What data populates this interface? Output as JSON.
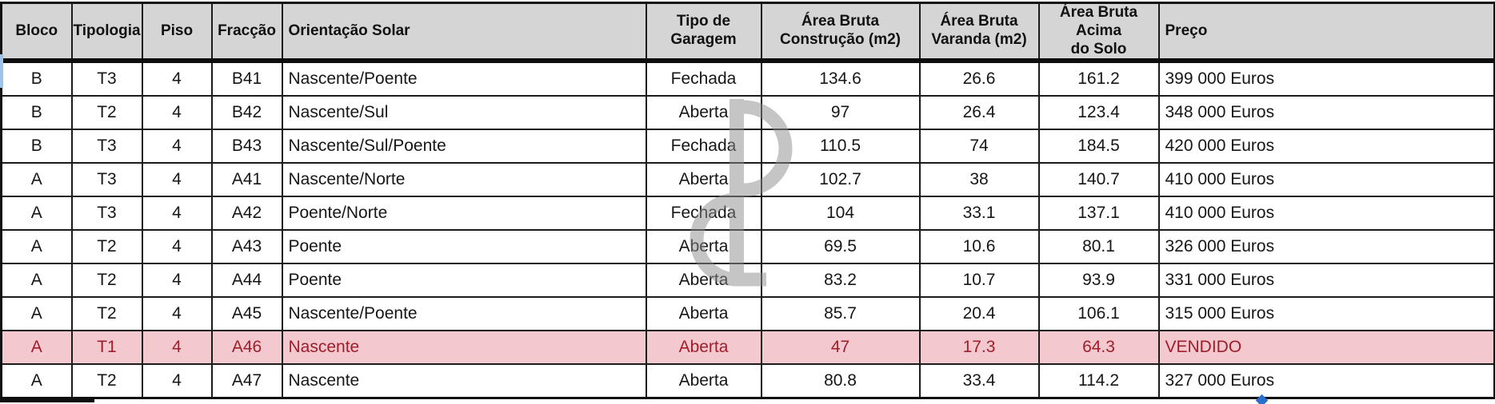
{
  "table": {
    "columns": [
      {
        "key": "bloco",
        "label": "Bloco",
        "align": "center"
      },
      {
        "key": "tipologia",
        "label": "Tipologia",
        "align": "center"
      },
      {
        "key": "piso",
        "label": "Piso",
        "align": "center"
      },
      {
        "key": "fraccao",
        "label": "Fracção",
        "align": "center"
      },
      {
        "key": "orientacao",
        "label": "Orientação Solar",
        "align": "left"
      },
      {
        "key": "garagem",
        "label": "Tipo de Garagem",
        "align": "center"
      },
      {
        "key": "area_construcao",
        "label": "Área Bruta\nConstrução (m2)",
        "align": "center"
      },
      {
        "key": "area_varanda",
        "label": "Área Bruta\nVaranda (m2)",
        "align": "center"
      },
      {
        "key": "area_acima_solo",
        "label": "Área Bruta Acima\ndo Solo",
        "align": "center"
      },
      {
        "key": "preco",
        "label": "Preço",
        "align": "left"
      }
    ],
    "rows": [
      {
        "highlight": false,
        "cells": [
          "B",
          "T3",
          "4",
          "B41",
          "Nascente/Poente",
          "Fechada",
          "134.6",
          "26.6",
          "161.2",
          "399 000 Euros"
        ]
      },
      {
        "highlight": false,
        "cells": [
          "B",
          "T2",
          "4",
          "B42",
          "Nascente/Sul",
          "Aberta",
          "97",
          "26.4",
          "123.4",
          "348 000 Euros"
        ]
      },
      {
        "highlight": false,
        "cells": [
          "B",
          "T3",
          "4",
          "B43",
          "Nascente/Sul/Poente",
          "Fechada",
          "110.5",
          "74",
          "184.5",
          "420 000 Euros"
        ]
      },
      {
        "highlight": false,
        "cells": [
          "A",
          "T3",
          "4",
          "A41",
          "Nascente/Norte",
          "Aberta",
          "102.7",
          "38",
          "140.7",
          "410 000 Euros"
        ]
      },
      {
        "highlight": false,
        "cells": [
          "A",
          "T3",
          "4",
          "A42",
          "Poente/Norte",
          "Fechada",
          "104",
          "33.1",
          "137.1",
          "410 000 Euros"
        ]
      },
      {
        "highlight": false,
        "cells": [
          "A",
          "T2",
          "4",
          "A43",
          "Poente",
          "Aberta",
          "69.5",
          "10.6",
          "80.1",
          "326 000 Euros"
        ]
      },
      {
        "highlight": false,
        "cells": [
          "A",
          "T2",
          "4",
          "A44",
          "Poente",
          "Aberta",
          "83.2",
          "10.7",
          "93.9",
          "331 000 Euros"
        ]
      },
      {
        "highlight": false,
        "cells": [
          "A",
          "T2",
          "4",
          "A45",
          "Nascente/Poente",
          "Aberta",
          "85.7",
          "20.4",
          "106.1",
          "315 000 Euros"
        ]
      },
      {
        "highlight": true,
        "cells": [
          "A",
          "T1",
          "4",
          "A46",
          "Nascente",
          "Aberta",
          "47",
          "17.3",
          "64.3",
          "VENDIDO"
        ]
      },
      {
        "highlight": false,
        "cells": [
          "A",
          "T2",
          "4",
          "A47",
          "Nascente",
          "Aberta",
          "80.8",
          "33.4",
          "114.2",
          "327 000 Euros"
        ]
      }
    ],
    "colors": {
      "header_bg": "#d5d5d5",
      "row_bg": "#ffffff",
      "highlight_bg": "#f3c9cf",
      "highlight_text": "#a01d2a",
      "border": "#1b1b1b",
      "text": "#161616",
      "watermark": "#8c8c8c"
    },
    "watermark_icon": "dp-monogram-watermark-icon",
    "sold_label": "VENDIDO"
  }
}
